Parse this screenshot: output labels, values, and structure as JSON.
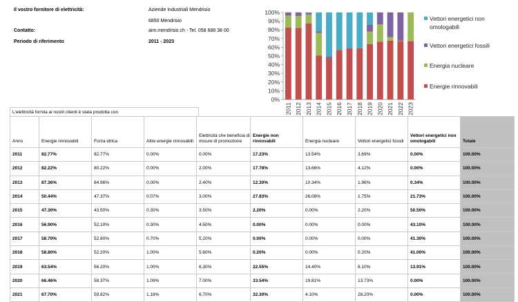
{
  "info": {
    "supplier_label": "Il vostro fornitore di elettricità:",
    "supplier_name": "Aziende Industriali Mendrisio",
    "supplier_city": "6850 Mendrisio",
    "contact_label": "Contatto:",
    "contact_value": "aim.mendrisio.ch  -  Tel. 058 688 38 00",
    "period_label": "Periodo di riferimento",
    "period_value": "2011 - 2023"
  },
  "colors": {
    "rinnovabili": "#c0504d",
    "nucleare": "#9bbb59",
    "fossili": "#8064a2",
    "non_omologabili": "#4bacc6"
  },
  "chart_data": {
    "type": "bar",
    "stacked": true,
    "categories": [
      "2011",
      "2012",
      "2013",
      "2014",
      "2015",
      "2016",
      "2017",
      "2018",
      "2019",
      "2020",
      "2021",
      "2022",
      "2023"
    ],
    "series": [
      {
        "name": "Energie rinnovabili",
        "values": [
          82.77,
          82.22,
          87.36,
          50.44,
          47.3,
          56.9,
          58.7,
          58.8,
          63.54,
          66.46,
          67.7,
          67.0,
          67.0
        ]
      },
      {
        "name": "Energia nucleare",
        "values": [
          13.54,
          13.66,
          10.34,
          26.08,
          0.0,
          0.0,
          0.0,
          0.0,
          14.4,
          19.81,
          4.1,
          0.5,
          33.0
        ]
      },
      {
        "name": "Vettori energetici fossili",
        "values": [
          3.69,
          4.12,
          1.96,
          1.75,
          2.2,
          0.0,
          0.0,
          0.2,
          8.1,
          13.73,
          28.2,
          32.5,
          0.0
        ]
      },
      {
        "name": "Vettori energetici non omologabili",
        "values": [
          0.0,
          0.0,
          0.34,
          21.73,
          50.5,
          43.1,
          41.3,
          41.0,
          13.91,
          0.0,
          0.0,
          0.0,
          0.0
        ]
      }
    ],
    "y_ticks": [
      "0%",
      "10%",
      "20%",
      "30%",
      "40%",
      "50%",
      "60%",
      "70%",
      "80%",
      "90%",
      "100%"
    ],
    "ylim": [
      0,
      100
    ],
    "legend": [
      {
        "lines": [
          "Vettori energetici non",
          "omologabili"
        ],
        "color": "#4bacc6"
      },
      {
        "lines": [
          "Vettori energetici fossili"
        ],
        "color": "#8064a2"
      },
      {
        "lines": [
          "Energia nucleare"
        ],
        "color": "#9bbb59"
      },
      {
        "lines": [
          "Energie rinnovabili"
        ],
        "color": "#c0504d"
      }
    ],
    "legend_position": "right"
  },
  "table": {
    "banner": "L'elettricità fornita ai nostri clienti è stata prodotta con",
    "headers": [
      {
        "text": "Anno",
        "bold": false
      },
      {
        "text": "Energie rinnovabili",
        "bold": false
      },
      {
        "text": "Forza idrica",
        "bold": false
      },
      {
        "text": "Altre energie rinnovabili",
        "bold": false
      },
      {
        "text": "Elettricità che beneficia di misure di promozione",
        "bold": false
      },
      {
        "text": "Energie non rinnovabili",
        "bold": true
      },
      {
        "text": "Energia nucleare",
        "bold": false
      },
      {
        "text": "Vettori energetici fossili",
        "bold": false
      },
      {
        "text": "Vettori energetici non omologabili",
        "bold": true
      },
      {
        "text": "Totale",
        "bold": true
      }
    ],
    "rows": [
      [
        "2011",
        "82.77%",
        "82.77%",
        "0.00%",
        "0.00%",
        "17.23%",
        "13.54%",
        "3.69%",
        "0.00%",
        "100.00%"
      ],
      [
        "2012",
        "82.22%",
        "80.22%",
        "0.00%",
        "2.00%",
        "17.78%",
        "13.66%",
        "4.12%",
        "0.00%",
        "100.00%"
      ],
      [
        "2013",
        "87.36%",
        "84.96%",
        "0.00%",
        "2.40%",
        "12.30%",
        "10.34%",
        "1.96%",
        "0.34%",
        "100.00%"
      ],
      [
        "2014",
        "50.44%",
        "47.37%",
        "0.07%",
        "3.00%",
        "27.83%",
        "26.08%",
        "1.75%",
        "21.73%",
        "100.00%"
      ],
      [
        "2015",
        "47.30%",
        "43.50%",
        "0.30%",
        "3.50%",
        "2.20%",
        "0.00%",
        "2.20%",
        "50.50%",
        "100.00%"
      ],
      [
        "2016",
        "56.90%",
        "52.10%",
        "0.30%",
        "4.50%",
        "0.00%",
        "0.00%",
        "0.00%",
        "43.10%",
        "100.00%"
      ],
      [
        "2017",
        "58.70%",
        "52.80%",
        "0.70%",
        "5.20%",
        "0.00%",
        "0.00%",
        "0.00%",
        "41.30%",
        "100.00%"
      ],
      [
        "2018",
        "58.80%",
        "52.20%",
        "1.00%",
        "5.60%",
        "0.20%",
        "0.00%",
        "0.20%",
        "41.00%",
        "100.00%"
      ],
      [
        "2019",
        "63.54%",
        "56.20%",
        "1.00%",
        "6.30%",
        "22.55%",
        "14.40%",
        "8.10%",
        "13.91%",
        "100.00%"
      ],
      [
        "2020",
        "66.46%",
        "58.37%",
        "1.09%",
        "7.00%",
        "33.54%",
        "19.81%",
        "13.73%",
        "0.00%",
        "100.00%"
      ],
      [
        "2021",
        "67.70%",
        "59.82%",
        "1.18%",
        "6.70%",
        "32.30%",
        "4.10%",
        "28.20%",
        "0.00%",
        "100.00%"
      ]
    ]
  }
}
